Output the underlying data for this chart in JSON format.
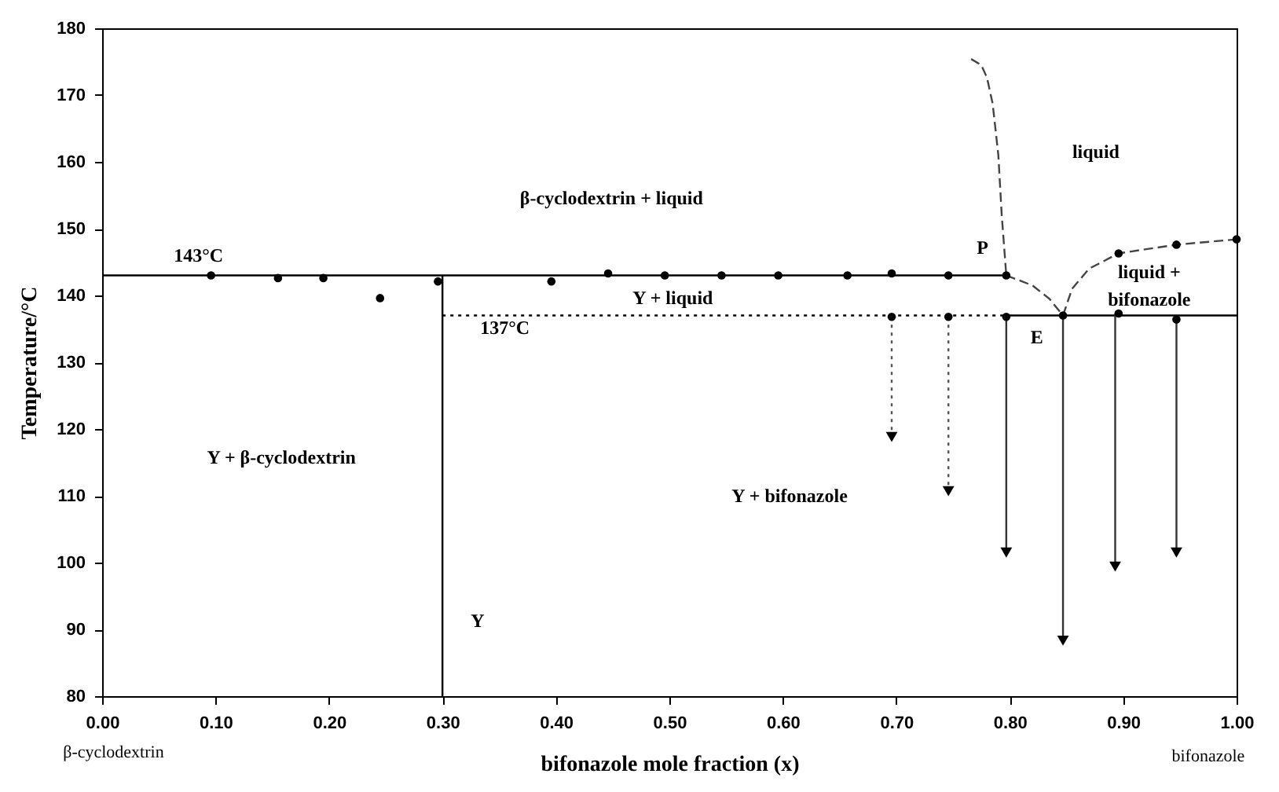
{
  "chart_data": {
    "type": "scatter",
    "xlabel": "bifonazole mole fraction (x)",
    "ylabel": "Temperature/°C",
    "xlim": [
      0,
      1
    ],
    "ylim": [
      80,
      180
    ],
    "xticks": [
      {
        "value": 0,
        "label": "0.00"
      },
      {
        "value": 0.1,
        "label": "0.10"
      },
      {
        "value": 0.2,
        "label": "0.20"
      },
      {
        "value": 0.3,
        "label": "0.30"
      },
      {
        "value": 0.4,
        "label": "0.40"
      },
      {
        "value": 0.5,
        "label": "0.50"
      },
      {
        "value": 0.6,
        "label": "0.60"
      },
      {
        "value": 0.7,
        "label": "0.70"
      },
      {
        "value": 0.8,
        "label": "0.80"
      },
      {
        "value": 0.9,
        "label": "0.90"
      },
      {
        "value": 1,
        "label": "1.00"
      }
    ],
    "yticks": [
      80,
      90,
      100,
      110,
      120,
      130,
      140,
      150,
      160,
      170,
      180
    ],
    "grid": false,
    "series": [
      {
        "type": "line",
        "color": "#000000",
        "line_style": "solid",
        "x": [
          0,
          0.797
        ],
        "values": [
          143,
          143
        ]
      },
      {
        "type": "line",
        "color": "#000000",
        "line_style": "solid",
        "x": [
          0.3,
          0.3
        ],
        "values": [
          80,
          143
        ]
      },
      {
        "type": "line",
        "color": "#000000",
        "line_style": "dotted",
        "x": [
          0.3,
          0.797
        ],
        "values": [
          137,
          137
        ]
      },
      {
        "type": "line",
        "color": "#000000",
        "line_style": "solid",
        "x": [
          0.797,
          1
        ],
        "values": [
          137,
          137
        ]
      },
      {
        "type": "line",
        "color": "#444444",
        "line_style": "dashed",
        "x": [
          0.766,
          0.775,
          0.78,
          0.785,
          0.79,
          0.793,
          0.797
        ],
        "values": [
          175.4,
          174.5,
          172.6,
          168.7,
          161,
          152,
          143
        ]
      },
      {
        "type": "line",
        "color": "#444444",
        "line_style": "dashed",
        "x": [
          0.797,
          0.82,
          0.835,
          0.847
        ],
        "values": [
          143,
          141.5,
          139.5,
          137
        ]
      },
      {
        "type": "line",
        "color": "#444444",
        "line_style": "dashed",
        "x": [
          0.847,
          0.855,
          0.87,
          0.896,
          0.947,
          1
        ],
        "values": [
          137,
          141,
          144,
          146.3,
          147.6,
          148.4
        ]
      },
      {
        "type": "line",
        "color": "#555555",
        "line_style": "dotted",
        "x": [
          0.696,
          0.696
        ],
        "values": [
          136.8,
          118.8
        ]
      },
      {
        "type": "line",
        "color": "#555555",
        "line_style": "dotted",
        "x": [
          0.746,
          0.746
        ],
        "values": [
          136.8,
          110.7
        ]
      },
      {
        "type": "line",
        "color": "#333333",
        "line_style": "solid",
        "x": [
          0.797,
          0.797
        ],
        "values": [
          136.8,
          101.5
        ]
      },
      {
        "type": "line",
        "color": "#333333",
        "line_style": "solid",
        "x": [
          0.847,
          0.847
        ],
        "values": [
          137,
          88.3
        ]
      },
      {
        "type": "line",
        "color": "#333333",
        "line_style": "solid",
        "x": [
          0.893,
          0.893
        ],
        "values": [
          137.3,
          99.4
        ]
      },
      {
        "type": "line",
        "color": "#333333",
        "line_style": "solid",
        "x": [
          0.947,
          0.947
        ],
        "values": [
          136.4,
          101.5
        ]
      },
      {
        "color": "#000000",
        "marker": "triangle",
        "x": [
          0.696,
          0.746,
          0.797,
          0.847,
          0.893,
          0.947
        ],
        "values": [
          118.8,
          110.7,
          101.5,
          88.3,
          99.4,
          101.5
        ]
      },
      {
        "color": "#000000",
        "marker": "circle",
        "x": [
          0.096,
          0.155,
          0.195,
          0.245,
          0.296,
          0.396,
          0.446,
          0.496,
          0.546,
          0.596,
          0.657,
          0.696,
          0.746,
          0.797
        ],
        "values": [
          143,
          142.6,
          142.6,
          139.6,
          142.1,
          142.1,
          143.3,
          143,
          143,
          143,
          143,
          143.3,
          143,
          143
        ]
      },
      {
        "color": "#000000",
        "marker": "circle",
        "x": [
          0.696,
          0.746,
          0.797,
          0.847,
          0.896,
          0.947
        ],
        "values": [
          136.8,
          136.8,
          136.8,
          137,
          137.3,
          136.4
        ]
      },
      {
        "color": "#000000",
        "marker": "circle",
        "x": [
          0.896,
          0.947,
          1
        ],
        "values": [
          146.3,
          147.6,
          148.4
        ]
      }
    ],
    "annotations": [
      "143°C",
      "137°C",
      "β-cyclodextrin + liquid",
      "Y + liquid",
      "liquid",
      "P",
      "E",
      "liquid +",
      "bifonazole",
      "Y + β-cyclodextrin",
      "Y",
      "Y + bifonazole",
      "β-cyclodextrin",
      "bifonazole"
    ]
  }
}
